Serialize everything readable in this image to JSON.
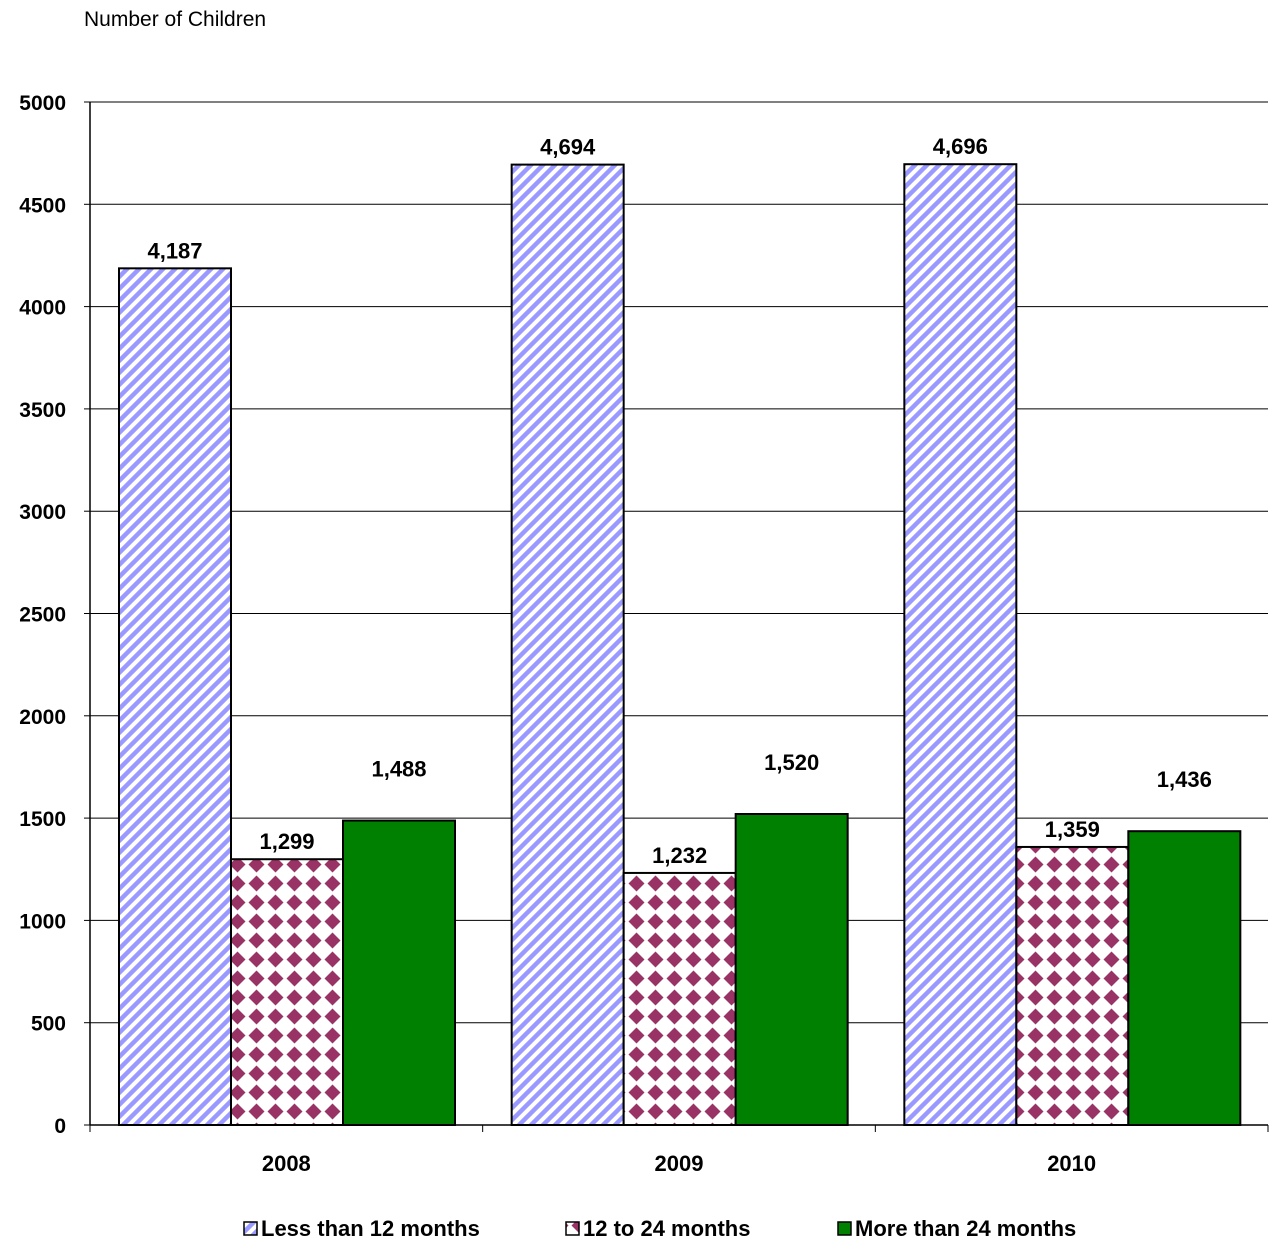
{
  "chart_data": {
    "type": "bar",
    "ylabel": "Number of Children",
    "xlabel": "",
    "categories": [
      "2008",
      "2009",
      "2010"
    ],
    "ylim": [
      0,
      5000
    ],
    "yticks": [
      0,
      500,
      1000,
      1500,
      2000,
      2500,
      3000,
      3500,
      4000,
      4500,
      5000
    ],
    "grid": true,
    "legend_position": "bottom",
    "series": [
      {
        "name": "Less than 12 months",
        "values": [
          4187,
          4694,
          4696
        ],
        "labels": [
          "4,187",
          "4,694",
          "4,696"
        ],
        "color": "#9999ff",
        "pattern": "diagonal-stripes"
      },
      {
        "name": "12 to 24 months",
        "values": [
          1299,
          1232,
          1359
        ],
        "labels": [
          "1,299",
          "1,232",
          "1,359"
        ],
        "color": "#993366",
        "pattern": "diamond-grid"
      },
      {
        "name": "More than 24 months",
        "values": [
          1488,
          1520,
          1436
        ],
        "labels": [
          "1,488",
          "1,520",
          "1,436"
        ],
        "color": "#008000",
        "pattern": "solid"
      }
    ]
  }
}
